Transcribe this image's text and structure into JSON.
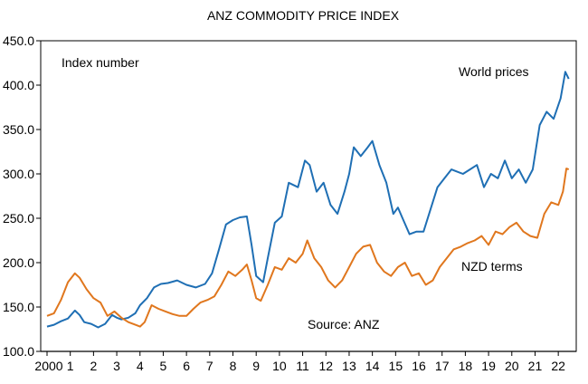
{
  "chart_data": {
    "type": "line",
    "title": "ANZ COMMODITY PRICE INDEX",
    "ylabel": "Index number",
    "xlabel": "",
    "ylim": [
      100,
      450
    ],
    "xlim": [
      2000,
      2022.5
    ],
    "grid": false,
    "yticks": [
      100,
      150,
      200,
      250,
      300,
      350,
      400,
      450
    ],
    "ytick_labels": [
      "100.0",
      "150.0",
      "200.0",
      "250.0",
      "300.0",
      "350.0",
      "400.0",
      "450.0"
    ],
    "xticks": [
      2000,
      2001,
      2002,
      2003,
      2004,
      2005,
      2006,
      2007,
      2008,
      2009,
      2010,
      2011,
      2012,
      2013,
      2014,
      2015,
      2016,
      2017,
      2018,
      2019,
      2020,
      2021,
      2022
    ],
    "xtick_labels": [
      "2000",
      "1",
      "2",
      "3",
      "4",
      "5",
      "6",
      "7",
      "8",
      "9",
      "10",
      "11",
      "12",
      "13",
      "14",
      "15",
      "16",
      "17",
      "18",
      "19",
      "20",
      "21",
      "22"
    ],
    "annotations": [
      {
        "text": "Index number"
      },
      {
        "text": "World prices"
      },
      {
        "text": "NZD terms"
      },
      {
        "text": "Source: ANZ"
      }
    ],
    "series": [
      {
        "name": "World prices",
        "color": "#1f6fb4",
        "x": [
          2000.0,
          2000.3,
          2000.6,
          2000.9,
          2001.2,
          2001.4,
          2001.6,
          2001.9,
          2002.2,
          2002.5,
          2002.8,
          2003.0,
          2003.2,
          2003.5,
          2003.8,
          2004.0,
          2004.3,
          2004.6,
          2004.9,
          2005.2,
          2005.6,
          2006.0,
          2006.4,
          2006.8,
          2007.1,
          2007.4,
          2007.7,
          2008.0,
          2008.3,
          2008.6,
          2008.8,
          2009.0,
          2009.3,
          2009.5,
          2009.8,
          2010.1,
          2010.4,
          2010.8,
          2011.1,
          2011.3,
          2011.6,
          2011.9,
          2012.2,
          2012.5,
          2012.8,
          2013.0,
          2013.2,
          2013.5,
          2013.8,
          2014.0,
          2014.3,
          2014.6,
          2014.9,
          2015.1,
          2015.3,
          2015.6,
          2015.9,
          2016.2,
          2016.5,
          2016.8,
          2017.1,
          2017.4,
          2017.6,
          2017.9,
          2018.2,
          2018.5,
          2018.8,
          2019.1,
          2019.4,
          2019.7,
          2020.0,
          2020.3,
          2020.6,
          2020.9,
          2021.2,
          2021.5,
          2021.8,
          2022.1,
          2022.3,
          2022.45
        ],
        "values": [
          128,
          130,
          134,
          137,
          146,
          141,
          133,
          131,
          127,
          131,
          141,
          138,
          136,
          138,
          143,
          152,
          160,
          172,
          176,
          177,
          180,
          175,
          172,
          176,
          188,
          215,
          243,
          248,
          251,
          252,
          220,
          185,
          178,
          205,
          245,
          252,
          290,
          285,
          315,
          310,
          280,
          290,
          265,
          255,
          280,
          300,
          330,
          320,
          330,
          337,
          310,
          290,
          255,
          262,
          250,
          232,
          235,
          235,
          260,
          285,
          295,
          305,
          303,
          300,
          305,
          310,
          285,
          300,
          295,
          315,
          295,
          305,
          290,
          305,
          355,
          370,
          362,
          385,
          415,
          407
        ]
      },
      {
        "name": "NZD terms",
        "color": "#e0771e",
        "x": [
          2000.0,
          2000.3,
          2000.6,
          2000.9,
          2001.2,
          2001.4,
          2001.7,
          2002.0,
          2002.3,
          2002.6,
          2002.9,
          2003.2,
          2003.5,
          2003.8,
          2004.0,
          2004.2,
          2004.5,
          2004.8,
          2005.1,
          2005.4,
          2005.7,
          2006.0,
          2006.3,
          2006.6,
          2006.9,
          2007.2,
          2007.5,
          2007.8,
          2008.1,
          2008.4,
          2008.6,
          2008.8,
          2009.0,
          2009.2,
          2009.5,
          2009.8,
          2010.1,
          2010.4,
          2010.7,
          2011.0,
          2011.2,
          2011.5,
          2011.8,
          2012.1,
          2012.4,
          2012.7,
          2013.0,
          2013.3,
          2013.6,
          2013.9,
          2014.2,
          2014.5,
          2014.8,
          2015.1,
          2015.4,
          2015.7,
          2016.0,
          2016.3,
          2016.6,
          2016.9,
          2017.2,
          2017.5,
          2017.8,
          2018.1,
          2018.4,
          2018.7,
          2019.0,
          2019.3,
          2019.6,
          2019.9,
          2020.2,
          2020.5,
          2020.8,
          2021.1,
          2021.4,
          2021.7,
          2022.0,
          2022.2,
          2022.35,
          2022.45
        ],
        "values": [
          140,
          143,
          158,
          178,
          188,
          183,
          170,
          160,
          155,
          140,
          145,
          138,
          133,
          130,
          128,
          133,
          152,
          148,
          145,
          142,
          140,
          140,
          148,
          155,
          158,
          162,
          175,
          190,
          185,
          192,
          198,
          180,
          160,
          157,
          175,
          195,
          192,
          205,
          200,
          210,
          225,
          205,
          195,
          180,
          172,
          180,
          195,
          210,
          218,
          220,
          200,
          190,
          185,
          195,
          200,
          185,
          188,
          175,
          180,
          195,
          205,
          215,
          218,
          222,
          225,
          230,
          220,
          235,
          232,
          240,
          245,
          235,
          230,
          228,
          255,
          268,
          265,
          280,
          306,
          305
        ]
      }
    ]
  }
}
